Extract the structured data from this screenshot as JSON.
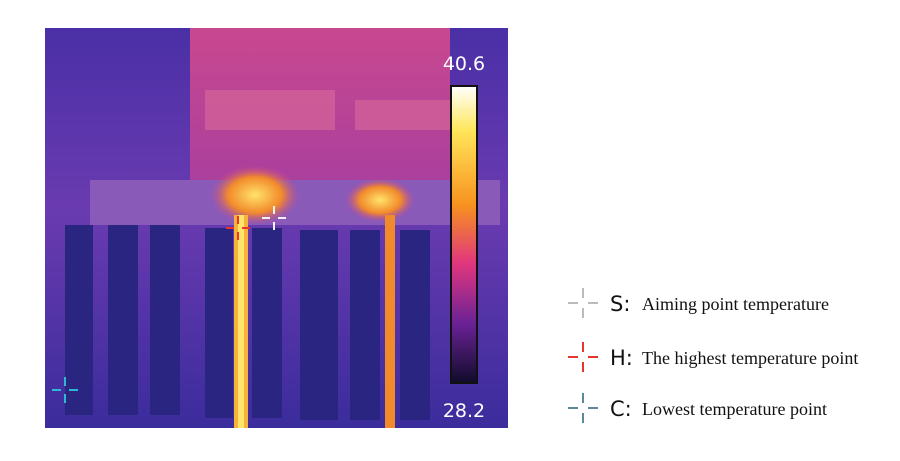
{
  "scale": {
    "max": "40.6",
    "min": "28.2"
  },
  "legend": [
    {
      "key": "S:",
      "text": "Aiming point temperature"
    },
    {
      "key": "H:",
      "text": "The highest temperature point"
    },
    {
      "key": "C:",
      "text": "Lowest temperature point"
    }
  ]
}
